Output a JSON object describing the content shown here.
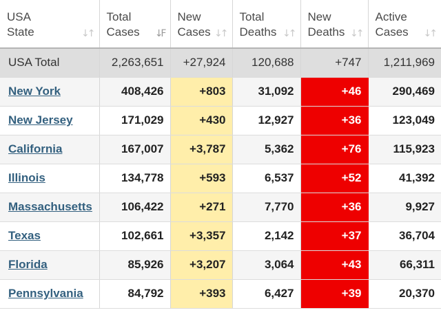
{
  "headers": {
    "state": "USA\nState",
    "total_cases": "Total\nCases",
    "new_cases": "New\nCases",
    "total_deaths": "Total\nDeaths",
    "new_deaths": "New\nDeaths",
    "active_cases": "Active\nCases"
  },
  "sort_icons": {
    "state": "↓↑",
    "total_cases": "↓F",
    "new_cases": "↓↑",
    "total_deaths": "↓↑",
    "new_deaths": "↓↑",
    "active_cases": "↓↑"
  },
  "total": {
    "state": "USA Total",
    "total_cases": "2,263,651",
    "new_cases": "+27,924",
    "total_deaths": "120,688",
    "new_deaths": "+747",
    "active_cases": "1,211,969"
  },
  "rows": [
    {
      "state": "New York",
      "total_cases": "408,426",
      "new_cases": "+803",
      "total_deaths": "31,092",
      "new_deaths": "+46",
      "active_cases": "290,469"
    },
    {
      "state": "New Jersey",
      "total_cases": "171,029",
      "new_cases": "+430",
      "total_deaths": "12,927",
      "new_deaths": "+36",
      "active_cases": "123,049"
    },
    {
      "state": "California",
      "total_cases": "167,007",
      "new_cases": "+3,787",
      "total_deaths": "5,362",
      "new_deaths": "+76",
      "active_cases": "115,923"
    },
    {
      "state": "Illinois",
      "total_cases": "134,778",
      "new_cases": "+593",
      "total_deaths": "6,537",
      "new_deaths": "+52",
      "active_cases": "41,392"
    },
    {
      "state": "Massachusetts",
      "total_cases": "106,422",
      "new_cases": "+271",
      "total_deaths": "7,770",
      "new_deaths": "+36",
      "active_cases": "9,927"
    },
    {
      "state": "Texas",
      "total_cases": "102,661",
      "new_cases": "+3,357",
      "total_deaths": "2,142",
      "new_deaths": "+37",
      "active_cases": "36,704"
    },
    {
      "state": "Florida",
      "total_cases": "85,926",
      "new_cases": "+3,207",
      "total_deaths": "3,064",
      "new_deaths": "+43",
      "active_cases": "66,311"
    },
    {
      "state": "Pennsylvania",
      "total_cases": "84,792",
      "new_cases": "+393",
      "total_deaths": "6,427",
      "new_deaths": "+39",
      "active_cases": "20,370"
    }
  ],
  "colors": {
    "new_cases_bg": "#ffeeaa",
    "new_deaths_bg": "#ee0000",
    "link": "#33607f",
    "total_row_bg": "#dedede"
  }
}
